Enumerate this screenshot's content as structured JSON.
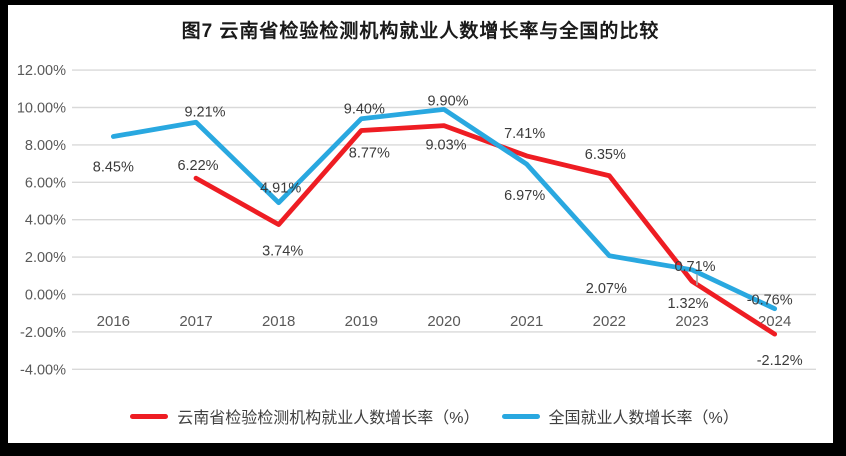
{
  "figure": {
    "title": "图7  云南省检验检测机构就业人数增长率与全国的比较"
  },
  "colors": {
    "yunnan_line": "#EE1D23",
    "national_line": "#29A8E0",
    "gridline": "#D9D9D9",
    "axis_text": "#595959",
    "data_label_text": "#3B3B3B",
    "leader_line": "#A6A6A6",
    "frame": "#000000",
    "background": "#FFFFFF"
  },
  "chart_data": {
    "type": "line",
    "title": "图7  云南省检验检测机构就业人数增长率与全国的比较",
    "categories": [
      "2016",
      "2017",
      "2018",
      "2019",
      "2020",
      "2021",
      "2022",
      "2023",
      "2024"
    ],
    "series": [
      {
        "name": "云南省检验检测机构就业人数增长率（%）",
        "color_key": "yunnan_line",
        "values": [
          null,
          6.22,
          3.74,
          8.77,
          9.03,
          7.41,
          6.35,
          0.71,
          -2.12
        ],
        "data_labels": [
          "",
          "6.22%",
          "3.74%",
          "8.77%",
          "9.03%",
          "7.41%",
          "6.35%",
          "0.71%",
          "-2.12%"
        ],
        "label_offsets": [
          [
            0,
            0
          ],
          [
            2,
            -13
          ],
          [
            4,
            26
          ],
          [
            8,
            22
          ],
          [
            2,
            19
          ],
          [
            -2,
            -23
          ],
          [
            -4,
            -22
          ],
          [
            3,
            -15
          ],
          [
            5,
            26
          ]
        ]
      },
      {
        "name": "全国就业人数增长率（%）",
        "color_key": "national_line",
        "values": [
          8.45,
          9.21,
          4.91,
          9.4,
          9.9,
          6.97,
          2.07,
          1.32,
          -0.76
        ],
        "data_labels": [
          "8.45%",
          "9.21%",
          "4.91%",
          "9.40%",
          "9.90%",
          "6.97%",
          "2.07%",
          "1.32%",
          "-0.76%"
        ],
        "label_offsets": [
          [
            0,
            30
          ],
          [
            9,
            -11
          ],
          [
            2,
            -15
          ],
          [
            3,
            -10
          ],
          [
            4,
            -9
          ],
          [
            -2,
            31
          ],
          [
            -3,
            32
          ],
          [
            -4,
            33
          ],
          [
            -5,
            -9
          ]
        ]
      }
    ],
    "y_axis": {
      "tick_labels": [
        "12.00%",
        "10.00%",
        "8.00%",
        "6.00%",
        "4.00%",
        "2.00%",
        "0.00%",
        "-2.00%",
        "-4.00%"
      ],
      "tick_values": [
        12,
        10,
        8,
        6,
        4,
        2,
        0,
        -2,
        -4
      ],
      "min": -4,
      "max": 12,
      "grid": true
    },
    "x_axis": {
      "tick_labels": [
        "2016",
        "2017",
        "2018",
        "2019",
        "2020",
        "2021",
        "2022",
        "2023",
        "2024"
      ]
    },
    "legend_position": "bottom",
    "annotations": [
      {
        "type": "leader_line",
        "series_index": 0,
        "category_index": 7,
        "label": "0.71%",
        "note": "leader connecting displaced 0.71% data label to Yunnan 2023 point"
      }
    ]
  }
}
